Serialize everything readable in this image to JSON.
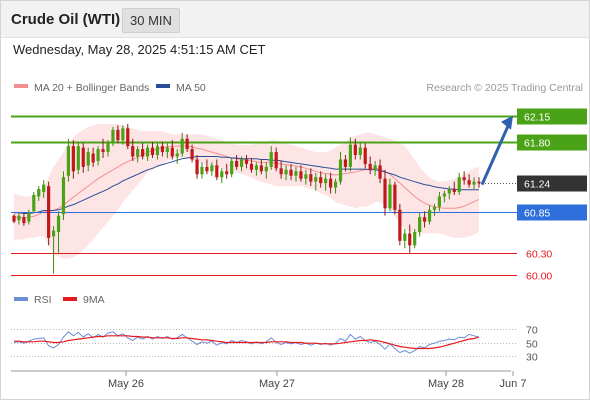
{
  "header": {
    "title": "Crude Oil (WTI)",
    "interval": "30 MIN"
  },
  "timestamp": "Wednesday, May 28, 2025 4:51:15 AM CET",
  "legend": {
    "ma20_bb": "MA 20 + Bollinger Bands",
    "ma50": "MA 50",
    "ma20_color": "#f58f8f",
    "ma50_color": "#2a4d9a",
    "research": "Research © 2025 Trading Central"
  },
  "chart_data": [
    {
      "type": "candlestick",
      "ylim": [
        59.85,
        62.35
      ],
      "x_ticks": [
        "May 26",
        "May 27",
        "May 28",
        "Jun 7"
      ],
      "last_price": 61.24,
      "levels": [
        {
          "value": 62.15,
          "label": "62.15",
          "kind": "resistance",
          "color": "#4aa317"
        },
        {
          "value": 61.8,
          "label": "61.80",
          "kind": "resistance",
          "color": "#4aa317"
        },
        {
          "value": 61.24,
          "label": "61.24",
          "kind": "last",
          "color": "#333333"
        },
        {
          "value": 60.85,
          "label": "60.85",
          "kind": "pivot",
          "color": "#2f6fdb"
        },
        {
          "value": 60.3,
          "label": "60.30",
          "kind": "support",
          "color": "#e8191d"
        },
        {
          "value": 60.0,
          "label": "60.00",
          "kind": "support",
          "color": "#e8191d"
        }
      ],
      "forecast_arrow": {
        "from": 61.22,
        "to": 62.15
      },
      "candles": [
        [
          60.8,
          60.82,
          60.7,
          60.72
        ],
        [
          60.74,
          60.84,
          60.68,
          60.8
        ],
        [
          60.78,
          60.84,
          60.66,
          60.7
        ],
        [
          60.72,
          60.88,
          60.68,
          60.84
        ],
        [
          60.86,
          61.12,
          60.84,
          61.08
        ],
        [
          61.06,
          61.2,
          61.0,
          61.16
        ],
        [
          61.12,
          61.28,
          61.04,
          61.22
        ],
        [
          61.2,
          61.26,
          60.4,
          60.5
        ],
        [
          60.52,
          60.66,
          60.02,
          60.6
        ],
        [
          60.58,
          60.86,
          60.3,
          60.8
        ],
        [
          60.82,
          61.4,
          60.74,
          61.32
        ],
        [
          61.34,
          61.84,
          61.26,
          61.74
        ],
        [
          61.74,
          61.82,
          61.3,
          61.4
        ],
        [
          61.42,
          61.8,
          61.36,
          61.74
        ],
        [
          61.72,
          61.78,
          61.38,
          61.46
        ],
        [
          61.48,
          61.72,
          61.4,
          61.66
        ],
        [
          61.64,
          61.72,
          61.46,
          61.52
        ],
        [
          61.54,
          61.74,
          61.48,
          61.7
        ],
        [
          61.7,
          61.84,
          61.58,
          61.66
        ],
        [
          61.66,
          61.82,
          61.6,
          61.78
        ],
        [
          61.78,
          62.0,
          61.74,
          61.96
        ],
        [
          61.96,
          62.02,
          61.78,
          61.82
        ],
        [
          61.82,
          62.02,
          61.76,
          61.98
        ],
        [
          61.98,
          62.04,
          61.7,
          61.74
        ],
        [
          61.74,
          61.84,
          61.54,
          61.6
        ],
        [
          61.6,
          61.74,
          61.52,
          61.7
        ],
        [
          61.7,
          61.78,
          61.56,
          61.6
        ],
        [
          61.6,
          61.76,
          61.54,
          61.72
        ],
        [
          61.72,
          61.8,
          61.58,
          61.62
        ],
        [
          61.62,
          61.78,
          61.56,
          61.74
        ],
        [
          61.74,
          61.8,
          61.6,
          61.66
        ],
        [
          61.66,
          61.78,
          61.58,
          61.72
        ],
        [
          61.72,
          61.82,
          61.56,
          61.6
        ],
        [
          61.6,
          61.7,
          61.5,
          61.64
        ],
        [
          61.64,
          61.92,
          61.6,
          61.84
        ],
        [
          61.84,
          61.9,
          61.66,
          61.7
        ],
        [
          61.7,
          61.76,
          61.52,
          61.56
        ],
        [
          61.56,
          61.62,
          61.3,
          61.36
        ],
        [
          61.36,
          61.52,
          61.3,
          61.46
        ],
        [
          61.46,
          61.56,
          61.36,
          61.4
        ],
        [
          61.4,
          61.52,
          61.34,
          61.48
        ],
        [
          61.48,
          61.56,
          61.28,
          61.32
        ],
        [
          61.32,
          61.44,
          61.24,
          61.4
        ],
        [
          61.4,
          61.5,
          61.3,
          61.36
        ],
        [
          61.36,
          61.58,
          61.32,
          61.54
        ],
        [
          61.54,
          61.62,
          61.42,
          61.46
        ],
        [
          61.46,
          61.6,
          61.4,
          61.56
        ],
        [
          61.56,
          61.62,
          61.44,
          61.5
        ],
        [
          61.5,
          61.58,
          61.38,
          61.42
        ],
        [
          61.42,
          61.52,
          61.34,
          61.48
        ],
        [
          61.48,
          61.56,
          61.36,
          61.4
        ],
        [
          61.4,
          61.52,
          61.3,
          61.46
        ],
        [
          61.46,
          61.74,
          61.42,
          61.66
        ],
        [
          61.66,
          61.72,
          61.4,
          61.44
        ],
        [
          61.44,
          61.54,
          61.3,
          61.36
        ],
        [
          61.36,
          61.48,
          61.28,
          61.42
        ],
        [
          61.42,
          61.5,
          61.28,
          61.34
        ],
        [
          61.34,
          61.46,
          61.26,
          61.4
        ],
        [
          61.4,
          61.48,
          61.26,
          61.3
        ],
        [
          61.3,
          61.42,
          61.22,
          61.36
        ],
        [
          61.36,
          61.44,
          61.2,
          61.26
        ],
        [
          61.26,
          61.38,
          61.14,
          61.32
        ],
        [
          61.32,
          61.4,
          61.18,
          61.24
        ],
        [
          61.24,
          61.36,
          61.14,
          61.3
        ],
        [
          61.3,
          61.38,
          61.1,
          61.18
        ],
        [
          61.18,
          61.3,
          61.1,
          61.26
        ],
        [
          61.26,
          61.66,
          61.22,
          61.56
        ],
        [
          61.56,
          61.62,
          61.4,
          61.46
        ],
        [
          61.46,
          61.86,
          61.4,
          61.76
        ],
        [
          61.76,
          61.84,
          61.56,
          61.62
        ],
        [
          61.62,
          61.8,
          61.56,
          61.72
        ],
        [
          61.72,
          61.78,
          61.44,
          61.5
        ],
        [
          61.5,
          61.6,
          61.36,
          61.42
        ],
        [
          61.42,
          61.54,
          61.34,
          61.48
        ],
        [
          61.48,
          61.56,
          61.24,
          61.3
        ],
        [
          61.3,
          61.42,
          60.8,
          60.9
        ],
        [
          60.9,
          61.3,
          60.86,
          61.22
        ],
        [
          61.22,
          61.26,
          60.82,
          60.88
        ],
        [
          60.88,
          60.96,
          60.4,
          60.46
        ],
        [
          60.46,
          60.62,
          60.36,
          60.56
        ],
        [
          60.56,
          60.68,
          60.3,
          60.4
        ],
        [
          60.4,
          60.62,
          60.36,
          60.58
        ],
        [
          60.58,
          60.84,
          60.52,
          60.78
        ],
        [
          60.78,
          60.86,
          60.64,
          60.72
        ],
        [
          60.72,
          60.94,
          60.68,
          60.88
        ],
        [
          60.88,
          60.96,
          60.8,
          60.92
        ],
        [
          60.92,
          61.12,
          60.86,
          61.06
        ],
        [
          61.06,
          61.14,
          60.98,
          61.1
        ],
        [
          61.1,
          61.2,
          61.02,
          61.16
        ],
        [
          61.16,
          61.26,
          61.08,
          61.12
        ],
        [
          61.12,
          61.38,
          61.08,
          61.32
        ],
        [
          61.32,
          61.4,
          61.22,
          61.28
        ],
        [
          61.28,
          61.36,
          61.18,
          61.22
        ],
        [
          61.22,
          61.32,
          61.16,
          61.26
        ],
        [
          61.26,
          61.32,
          61.18,
          61.24
        ]
      ],
      "ma20": [
        60.78,
        60.78,
        60.77,
        60.78,
        60.79,
        60.82,
        60.85,
        60.86,
        60.87,
        60.9,
        60.94,
        61.0,
        61.05,
        61.1,
        61.15,
        61.2,
        61.25,
        61.3,
        61.34,
        61.38,
        61.42,
        61.46,
        61.5,
        61.53,
        61.56,
        61.59,
        61.62,
        61.66,
        61.68,
        61.7,
        61.72,
        61.73,
        61.74,
        61.74,
        61.74,
        61.74,
        61.73,
        61.71,
        61.7,
        61.68,
        61.66,
        61.64,
        61.62,
        61.6,
        61.58,
        61.57,
        61.56,
        61.55,
        61.54,
        61.53,
        61.52,
        61.52,
        61.52,
        61.51,
        61.5,
        61.49,
        61.48,
        61.47,
        61.46,
        61.44,
        61.42,
        61.4,
        61.38,
        61.37,
        61.36,
        61.35,
        61.36,
        61.37,
        61.38,
        61.39,
        61.41,
        61.42,
        61.43,
        61.44,
        61.43,
        61.4,
        61.36,
        61.3,
        61.24,
        61.18,
        61.12,
        61.06,
        61.01,
        60.97,
        60.94,
        60.92,
        60.91,
        60.9,
        60.9,
        60.9,
        60.91,
        60.93,
        60.96,
        60.99,
        61.02
      ],
      "bb_upper": [
        61.1,
        61.08,
        61.06,
        61.06,
        61.08,
        61.12,
        61.18,
        61.32,
        61.46,
        61.56,
        61.66,
        61.78,
        61.86,
        61.92,
        61.96,
        62.0,
        62.02,
        62.04,
        62.04,
        62.04,
        62.04,
        62.04,
        62.02,
        62.0,
        61.98,
        61.96,
        61.94,
        61.94,
        61.94,
        61.94,
        61.94,
        61.92,
        61.9,
        61.9,
        61.9,
        61.9,
        61.9,
        61.9,
        61.9,
        61.88,
        61.86,
        61.84,
        61.82,
        61.8,
        61.78,
        61.76,
        61.76,
        61.76,
        61.76,
        61.78,
        61.78,
        61.8,
        61.82,
        61.82,
        61.8,
        61.78,
        61.76,
        61.74,
        61.72,
        61.7,
        61.68,
        61.66,
        61.66,
        61.66,
        61.68,
        61.72,
        61.76,
        61.8,
        61.84,
        61.88,
        61.9,
        61.92,
        61.92,
        61.9,
        61.88,
        61.86,
        61.84,
        61.82,
        61.78,
        61.74,
        61.66,
        61.56,
        61.46,
        61.38,
        61.32,
        61.28,
        61.26,
        61.26,
        61.28,
        61.3,
        61.32,
        61.36,
        61.4,
        61.44,
        61.46
      ],
      "bb_lower": [
        60.46,
        60.48,
        60.48,
        60.5,
        60.5,
        60.52,
        60.52,
        60.4,
        60.28,
        60.24,
        60.22,
        60.22,
        60.24,
        60.28,
        60.34,
        60.4,
        60.48,
        60.56,
        60.64,
        60.72,
        60.8,
        60.88,
        60.98,
        61.06,
        61.14,
        61.22,
        61.3,
        61.38,
        61.42,
        61.46,
        61.5,
        61.54,
        61.56,
        61.58,
        61.58,
        61.58,
        61.56,
        61.52,
        61.5,
        61.48,
        61.46,
        61.44,
        61.42,
        61.4,
        61.38,
        61.38,
        61.36,
        61.34,
        61.32,
        61.28,
        61.26,
        61.24,
        61.22,
        61.2,
        61.2,
        61.2,
        61.2,
        61.2,
        61.2,
        61.18,
        61.16,
        61.14,
        61.1,
        61.08,
        61.04,
        60.98,
        60.96,
        60.94,
        60.92,
        60.9,
        60.92,
        60.92,
        60.94,
        60.98,
        60.98,
        60.94,
        60.88,
        60.78,
        60.7,
        60.62,
        60.58,
        60.56,
        60.56,
        60.56,
        60.56,
        60.56,
        60.56,
        60.54,
        60.52,
        60.5,
        60.5,
        60.5,
        60.52,
        60.54,
        60.58
      ],
      "ma50": [
        60.84,
        60.84,
        60.83,
        60.83,
        60.84,
        60.85,
        60.87,
        60.87,
        60.87,
        60.88,
        60.9,
        60.93,
        60.95,
        60.98,
        61.01,
        61.04,
        61.07,
        61.1,
        61.13,
        61.16,
        61.2,
        61.23,
        61.27,
        61.3,
        61.33,
        61.36,
        61.39,
        61.42,
        61.44,
        61.47,
        61.49,
        61.51,
        61.53,
        61.55,
        61.57,
        61.58,
        61.59,
        61.6,
        61.6,
        61.6,
        61.6,
        61.6,
        61.59,
        61.59,
        61.58,
        61.58,
        61.57,
        61.57,
        61.57,
        61.57,
        61.56,
        61.56,
        61.55,
        61.55,
        61.54,
        61.53,
        61.52,
        61.51,
        61.5,
        61.49,
        61.48,
        61.47,
        61.46,
        61.45,
        61.44,
        61.43,
        61.43,
        61.43,
        61.43,
        61.43,
        61.43,
        61.43,
        61.42,
        61.42,
        61.41,
        61.39,
        61.37,
        61.35,
        61.32,
        61.3,
        61.28,
        61.26,
        61.24,
        61.22,
        61.21,
        61.19,
        61.18,
        61.17,
        61.16,
        61.16,
        61.15,
        61.15,
        61.15,
        61.15,
        61.15
      ]
    },
    {
      "type": "line",
      "ylim": [
        15,
        85
      ],
      "y_ticks": [
        "70",
        "50",
        "30"
      ],
      "series": [
        {
          "name": "RSI",
          "color": "#6b8ed6",
          "values": [
            50,
            51,
            49,
            52,
            55,
            56,
            57,
            45,
            42,
            47,
            58,
            66,
            60,
            65,
            58,
            63,
            57,
            62,
            58,
            64,
            66,
            60,
            63,
            57,
            53,
            58,
            55,
            59,
            55,
            59,
            56,
            59,
            55,
            57,
            62,
            57,
            52,
            47,
            51,
            49,
            52,
            46,
            50,
            48,
            53,
            50,
            53,
            51,
            48,
            51,
            48,
            51,
            57,
            50,
            47,
            50,
            48,
            50,
            47,
            49,
            46,
            49,
            47,
            49,
            46,
            49,
            56,
            52,
            62,
            55,
            59,
            53,
            50,
            52,
            47,
            40,
            48,
            41,
            35,
            38,
            34,
            38,
            44,
            42,
            47,
            49,
            52,
            53,
            55,
            54,
            58,
            57,
            62,
            60,
            58
          ]
        },
        {
          "name": "9MA",
          "color": "#e8191d",
          "values": [
            52,
            52,
            51,
            51,
            51,
            52,
            52,
            51,
            50,
            50,
            51,
            53,
            54,
            55,
            56,
            57,
            58,
            59,
            59,
            60,
            60,
            60,
            60,
            60,
            59,
            59,
            58,
            58,
            57,
            57,
            57,
            57,
            56,
            56,
            57,
            57,
            56,
            55,
            54,
            54,
            53,
            52,
            51,
            50,
            50,
            50,
            50,
            50,
            50,
            50,
            50,
            50,
            51,
            51,
            51,
            51,
            50,
            50,
            50,
            49,
            49,
            49,
            48,
            48,
            48,
            48,
            49,
            50,
            51,
            52,
            53,
            53,
            54,
            53,
            52,
            50,
            48,
            46,
            44,
            43,
            42,
            41,
            41,
            41,
            41,
            42,
            43,
            45,
            47,
            49,
            51,
            53,
            55,
            56,
            58
          ]
        }
      ]
    }
  ],
  "rsi_legend": {
    "rsi": "RSI",
    "ma9": "9MA"
  }
}
